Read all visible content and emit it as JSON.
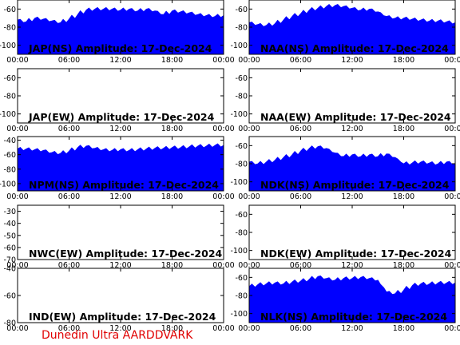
{
  "page": {
    "footer_text": "Dunedin Ultra AARDDVARK",
    "footer_color": "#e00000",
    "fill_color": "#0000ff"
  },
  "chart_data": [
    {
      "type": "area",
      "title": "JAP(NS) Amplitude: 17-Dec-2024",
      "x_ticks": [
        "00:00",
        "06:00",
        "12:00",
        "18:00",
        "00:00"
      ],
      "y_ticks": [
        -60,
        -80,
        -100
      ],
      "ylim": [
        -110,
        -50
      ],
      "xlim": [
        0,
        24
      ],
      "grid": false,
      "x": [
        0,
        1,
        2,
        3,
        4,
        5,
        6,
        7,
        8,
        9,
        10,
        11,
        12,
        13,
        14,
        15,
        16,
        17,
        18,
        19,
        20,
        21,
        22,
        23,
        24
      ],
      "values": [
        -72,
        -74,
        -70,
        -71,
        -73,
        -75,
        -71,
        -66,
        -61,
        -60,
        -60,
        -60,
        -61,
        -60,
        -62,
        -60,
        -62,
        -66,
        -62,
        -63,
        -64,
        -66,
        -67,
        -68,
        -67
      ]
    },
    {
      "type": "area",
      "title": "NAA(NS) Amplitude: 17-Dec-2024",
      "x_ticks": [
        "00:00",
        "06:00",
        "12:00",
        "18:00",
        "00:00"
      ],
      "y_ticks": [
        -60,
        -80,
        -100
      ],
      "ylim": [
        -110,
        -50
      ],
      "xlim": [
        0,
        24
      ],
      "grid": false,
      "x": [
        0,
        1,
        2,
        3,
        4,
        5,
        6,
        7,
        8,
        9,
        10,
        11,
        12,
        13,
        14,
        15,
        16,
        17,
        18,
        19,
        20,
        21,
        22,
        23,
        24
      ],
      "values": [
        -75,
        -77,
        -78,
        -76,
        -72,
        -68,
        -65,
        -61,
        -59,
        -57,
        -56,
        -57,
        -59,
        -61,
        -60,
        -63,
        -68,
        -70,
        -70,
        -71,
        -72,
        -73,
        -73,
        -74,
        -75
      ]
    },
    {
      "type": "area",
      "title": "JAP(EW) Amplitude: 17-Dec-2024",
      "x_ticks": [
        "00:00",
        "06:00",
        "12:00",
        "18:00",
        "00:00"
      ],
      "y_ticks": [
        -60,
        -80,
        -100
      ],
      "ylim": [
        -110,
        -50
      ],
      "xlim": [
        0,
        24
      ],
      "grid": false,
      "x": [],
      "values": []
    },
    {
      "type": "area",
      "title": "NAA(EW) Amplitude: 17-Dec-2024",
      "x_ticks": [
        "00:00",
        "06:00",
        "12:00",
        "18:00",
        "00:00"
      ],
      "y_ticks": [
        -60,
        -80,
        -100
      ],
      "ylim": [
        -110,
        -50
      ],
      "xlim": [
        0,
        24
      ],
      "grid": false,
      "x": [],
      "values": []
    },
    {
      "type": "area",
      "title": "NPM(NS) Amplitude: 17-Dec-2024",
      "x_ticks": [
        "00:00",
        "06:00",
        "12:00",
        "18:00",
        "00:00"
      ],
      "y_ticks": [
        -40,
        -60,
        -80,
        -100
      ],
      "ylim": [
        -110,
        -35
      ],
      "xlim": [
        0,
        24
      ],
      "grid": false,
      "x": [
        0,
        1,
        2,
        3,
        4,
        5,
        6,
        7,
        8,
        9,
        10,
        11,
        12,
        13,
        14,
        15,
        16,
        17,
        18,
        19,
        20,
        21,
        22,
        23,
        24
      ],
      "values": [
        -52,
        -52,
        -53,
        -54,
        -57,
        -58,
        -55,
        -50,
        -48,
        -51,
        -53,
        -54,
        -53,
        -54,
        -53,
        -52,
        -51,
        -51,
        -50,
        -50,
        -49,
        -48,
        -48,
        -47,
        -47
      ]
    },
    {
      "type": "area",
      "title": "NDK(NS) Amplitude: 17-Dec-2024",
      "x_ticks": [
        "00:00",
        "06:00",
        "12:00",
        "18:00",
        "00:00"
      ],
      "y_ticks": [
        -60,
        -80,
        -100
      ],
      "ylim": [
        -110,
        -50
      ],
      "xlim": [
        0,
        24
      ],
      "grid": false,
      "x": [
        0,
        1,
        2,
        3,
        4,
        5,
        6,
        7,
        8,
        9,
        10,
        11,
        12,
        13,
        14,
        15,
        16,
        17,
        18,
        19,
        20,
        21,
        22,
        23,
        24
      ],
      "values": [
        -78,
        -80,
        -78,
        -76,
        -73,
        -70,
        -66,
        -63,
        -61,
        -63,
        -68,
        -72,
        -70,
        -72,
        -70,
        -72,
        -69,
        -73,
        -80,
        -79,
        -78,
        -79,
        -80,
        -78,
        -80
      ]
    },
    {
      "type": "area",
      "title": "NWC(EW) Amplitude: 17-Dec-2024",
      "x_ticks": [
        "00:00",
        "06:00",
        "12:00",
        "18:00",
        "00:00"
      ],
      "y_ticks": [
        -30,
        -40,
        -50,
        -60,
        -70
      ],
      "ylim": [
        -70,
        -25
      ],
      "xlim": [
        0,
        24
      ],
      "grid": false,
      "x": [],
      "values": []
    },
    {
      "type": "area",
      "title": "NDK(EW) Amplitude: 17-Dec-2024",
      "x_ticks": [
        "00:00",
        "06:00",
        "12:00",
        "18:00",
        "00:00"
      ],
      "y_ticks": [
        -60,
        -80,
        -100
      ],
      "ylim": [
        -110,
        -50
      ],
      "xlim": [
        0,
        24
      ],
      "grid": false,
      "x": [],
      "values": []
    },
    {
      "type": "area",
      "title": "IND(EW) Amplitude: 17-Dec-2024",
      "x_ticks": [
        "00:00",
        "06:00",
        "12:00",
        "18:00",
        "00:00"
      ],
      "y_ticks": [
        -40,
        -60,
        -80
      ],
      "ylim": [
        -80,
        -40
      ],
      "xlim": [
        0,
        24
      ],
      "grid": false,
      "x": [],
      "values": []
    },
    {
      "type": "area",
      "title": "NLK(NS) Amplitude: 17-Dec-2024",
      "x_ticks": [
        "00:00",
        "06:00",
        "12:00",
        "18:00",
        "00:00"
      ],
      "y_ticks": [
        -60,
        -80,
        -100
      ],
      "ylim": [
        -110,
        -50
      ],
      "xlim": [
        0,
        24
      ],
      "grid": false,
      "x": [
        0,
        1,
        2,
        3,
        4,
        5,
        6,
        7,
        8,
        9,
        10,
        11,
        12,
        13,
        14,
        15,
        16,
        17,
        18,
        19,
        20,
        21,
        22,
        23,
        24
      ],
      "values": [
        -70,
        -68,
        -67,
        -66,
        -67,
        -65,
        -64,
        -62,
        -59,
        -61,
        -63,
        -61,
        -61,
        -60,
        -61,
        -63,
        -76,
        -78,
        -74,
        -69,
        -67,
        -67,
        -66,
        -66,
        -66
      ]
    }
  ]
}
